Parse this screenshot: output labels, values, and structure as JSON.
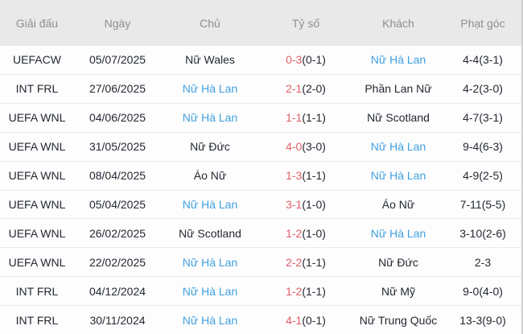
{
  "colors": {
    "accent_blue": "#3fa0e1",
    "score_red": "#e25d68",
    "header_bg": "#e9e9e9",
    "header_text": "#8e8e8e",
    "body_text": "#232832",
    "row_bg": "#fdfdfd",
    "divider": "#eaeaea",
    "right_edge": "#cfcfcf"
  },
  "table": {
    "columns": [
      {
        "key": "league",
        "label": "Giải đấu"
      },
      {
        "key": "date",
        "label": "Ngày"
      },
      {
        "key": "home",
        "label": "Chủ"
      },
      {
        "key": "score",
        "label": "Tỷ số"
      },
      {
        "key": "away",
        "label": "Khách"
      },
      {
        "key": "corners",
        "label": "Phạt góc"
      }
    ],
    "rows": [
      {
        "league": "UEFACW",
        "date": "05/07/2025",
        "home": "Nữ Wales",
        "home_blue": false,
        "score": "0-3",
        "score_ht": "(0-1)",
        "away": "Nữ Hà Lan",
        "away_blue": true,
        "corners": "4-4(3-1)"
      },
      {
        "league": "INT FRL",
        "date": "27/06/2025",
        "home": "Nữ Hà Lan",
        "home_blue": true,
        "score": "2-1",
        "score_ht": "(2-0)",
        "away": "Phần Lan Nữ",
        "away_blue": false,
        "corners": "4-2(3-0)"
      },
      {
        "league": "UEFA WNL",
        "date": "04/06/2025",
        "home": "Nữ Hà Lan",
        "home_blue": true,
        "score": "1-1",
        "score_ht": "(1-1)",
        "away": "Nữ Scotland",
        "away_blue": false,
        "corners": "4-7(3-1)"
      },
      {
        "league": "UEFA WNL",
        "date": "31/05/2025",
        "home": "Nữ Đức",
        "home_blue": false,
        "score": "4-0",
        "score_ht": "(3-0)",
        "away": "Nữ Hà Lan",
        "away_blue": true,
        "corners": "9-4(6-3)"
      },
      {
        "league": "UEFA WNL",
        "date": "08/04/2025",
        "home": "Áo Nữ",
        "home_blue": false,
        "score": "1-3",
        "score_ht": "(1-1)",
        "away": "Nữ Hà Lan",
        "away_blue": true,
        "corners": "4-9(2-5)"
      },
      {
        "league": "UEFA WNL",
        "date": "05/04/2025",
        "home": "Nữ Hà Lan",
        "home_blue": true,
        "score": "3-1",
        "score_ht": "(1-0)",
        "away": "Áo Nữ",
        "away_blue": false,
        "corners": "7-11(5-5)"
      },
      {
        "league": "UEFA WNL",
        "date": "26/02/2025",
        "home": "Nữ Scotland",
        "home_blue": false,
        "score": "1-2",
        "score_ht": "(1-0)",
        "away": "Nữ Hà Lan",
        "away_blue": true,
        "corners": "3-10(2-6)"
      },
      {
        "league": "UEFA WNL",
        "date": "22/02/2025",
        "home": "Nữ Hà Lan",
        "home_blue": true,
        "score": "2-2",
        "score_ht": "(1-1)",
        "away": "Nữ Đức",
        "away_blue": false,
        "corners": "2-3"
      },
      {
        "league": "INT FRL",
        "date": "04/12/2024",
        "home": "Nữ Hà Lan",
        "home_blue": true,
        "score": "1-2",
        "score_ht": "(1-1)",
        "away": "Nữ Mỹ",
        "away_blue": false,
        "corners": "9-0(4-0)"
      },
      {
        "league": "INT FRL",
        "date": "30/11/2024",
        "home": "Nữ Hà Lan",
        "home_blue": true,
        "score": "4-1",
        "score_ht": "(0-1)",
        "away": "Nữ Trung Quốc",
        "away_blue": false,
        "corners": "13-3(9-0)"
      }
    ]
  }
}
